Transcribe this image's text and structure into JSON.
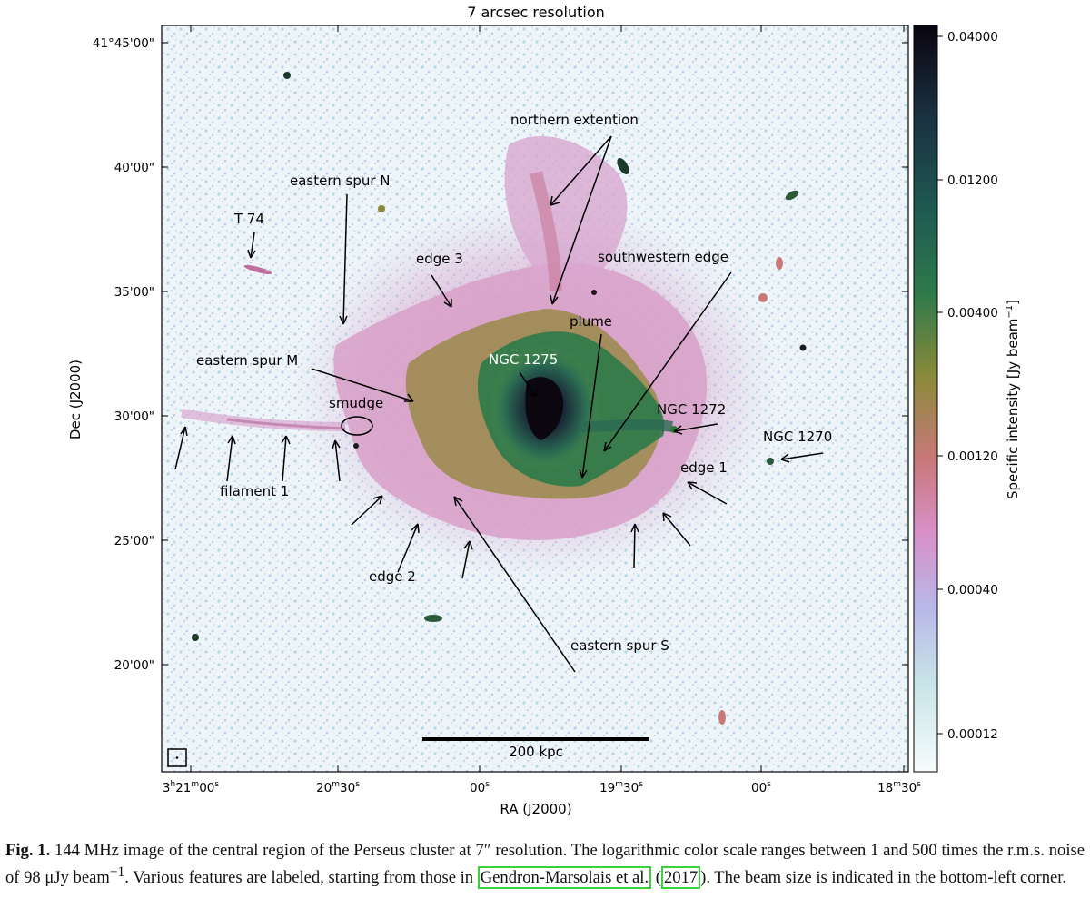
{
  "figure": {
    "title": "7 arcsec resolution",
    "dec_label": "Dec (J2000)",
    "ra_label": "RA (J2000)",
    "dec_ticks": [
      "41°45'00\"",
      "40'00\"",
      "35'00\"",
      "30'00\"",
      "25'00\"",
      "20'00\""
    ],
    "ra_ticks": [
      {
        "main": "3",
        "sup1": "h",
        "mid": "21",
        "sup2": "m",
        "end": "00",
        "sup3": "s"
      },
      {
        "main": "",
        "sup1": "",
        "mid": "20",
        "sup2": "m",
        "end": "30",
        "sup3": "s"
      },
      {
        "main": "",
        "sup1": "",
        "mid": "",
        "sup2": "",
        "end": "00",
        "sup3": "s"
      },
      {
        "main": "",
        "sup1": "",
        "mid": "19",
        "sup2": "m",
        "end": "30",
        "sup3": "s"
      },
      {
        "main": "",
        "sup1": "",
        "mid": "",
        "sup2": "",
        "end": "00",
        "sup3": "s"
      },
      {
        "main": "",
        "sup1": "",
        "mid": "18",
        "sup2": "m",
        "end": "30",
        "sup3": "s"
      }
    ],
    "colorbar_ticks": [
      "0.04000",
      "0.01200",
      "0.00400",
      "0.00120",
      "0.00040",
      "0.00012"
    ],
    "colorbar_label": "Specific intensity [Jy beam",
    "colorbar_label_sup": "−1",
    "colorbar_label_end": "]",
    "scalebar_label": "200 kpc",
    "annotations": {
      "northern_extention": "northern extention",
      "eastern_spur_n": "eastern spur N",
      "t74": "T 74",
      "edge3": "edge 3",
      "southwestern_edge": "southwestern edge",
      "plume": "plume",
      "eastern_spur_m": "eastern spur M",
      "ngc1275": "NGC 1275",
      "smudge": "smudge",
      "ngc1272": "NGC 1272",
      "ngc1270": "NGC 1270",
      "edge1": "edge 1",
      "filament1": "filament 1",
      "edge2": "edge 2",
      "eastern_spur_s": "eastern spur S"
    },
    "colors": {
      "background_noise": "#c9dce8",
      "pink": "#d08ab4",
      "olive": "#7a7a3a",
      "green": "#2e7a4a",
      "teal": "#1f5a5a",
      "core": "#140c18",
      "colorbar": [
        "#0a0510",
        "#1a3a4a",
        "#2e7a4a",
        "#8a8a3a",
        "#c87878",
        "#d890c8",
        "#b8b8e8",
        "#c8e4e8",
        "#f4fbfb"
      ],
      "citation_box": "#3ad13a"
    }
  },
  "caption": {
    "label": "Fig. 1.",
    "text_1": " 144 MHz image of the central region of the Perseus cluster at 7″ resolution. The logarithmic color scale ranges between 1 and 500 times the r.m.s. noise of 98 μJy beam",
    "sup": "−1",
    "text_2": ". Various features are labeled, starting from those in ",
    "cite_author": "Gendron-Marsolais et al.",
    "text_3": " (",
    "cite_year": "2017",
    "text_4": "). The beam size is indicated in the bottom-left corner."
  }
}
